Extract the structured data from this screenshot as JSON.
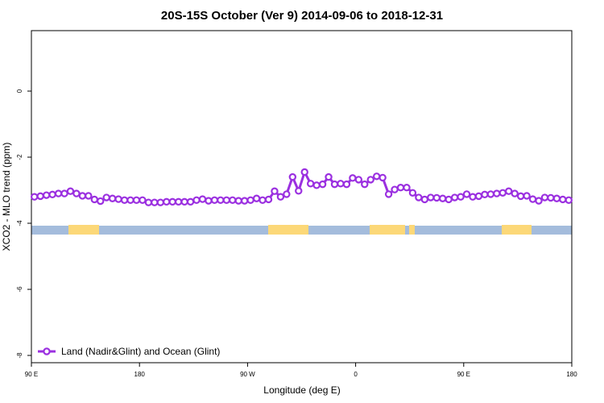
{
  "chart_data": {
    "type": "line",
    "title": "20S-15S October (Ver 9)   2014-09-06 to 2018-12-31",
    "x_label": "Longitude (deg E)",
    "y_label": "XCO2 - MLO trend (ppm)",
    "xlim": [
      90,
      540
    ],
    "xticks": [
      {
        "value": 90,
        "label": "90 E"
      },
      180,
      {
        "value": 270,
        "label": "90 W"
      },
      {
        "value": 360,
        "label": "0"
      },
      {
        "value": 450,
        "label": "90 E"
      },
      {
        "value": 540,
        "label": "180"
      }
    ],
    "ylim": [
      -8.22,
      1.83
    ],
    "yticks": [
      0,
      -2,
      -4,
      -6,
      -8
    ],
    "legend": "bottom-left",
    "x": [
      92.5,
      97.5,
      102.5,
      107.5,
      112.5,
      117.5,
      122.5,
      127.5,
      132.5,
      137.5,
      142.5,
      147.5,
      152.5,
      157.5,
      162.5,
      167.5,
      172.5,
      177.5,
      182.5,
      187.5,
      192.5,
      197.5,
      202.5,
      207.5,
      212.5,
      217.5,
      222.5,
      227.5,
      232.5,
      237.5,
      242.5,
      247.5,
      252.5,
      257.5,
      262.5,
      267.5,
      272.5,
      277.5,
      282.5,
      287.5,
      292.5,
      297.5,
      302.5,
      307.5,
      312.5,
      317.5,
      322.5,
      327.5,
      332.5,
      337.5,
      342.5,
      347.5,
      352.5,
      357.5,
      362.5,
      367.5,
      372.5,
      377.5,
      382.5,
      387.5,
      392.5,
      397.5,
      402.5,
      407.5,
      412.5,
      417.5,
      422.5,
      427.5,
      432.5,
      437.5,
      442.5,
      447.5,
      452.5,
      457.5,
      462.5,
      467.5,
      472.5,
      477.5,
      482.5,
      487.5,
      492.5,
      497.5,
      502.5,
      507.5,
      512.5,
      517.5,
      522.5,
      527.5,
      532.5,
      537.5
    ],
    "series": [
      {
        "name": "Land (Nadir&Glint) and Ocean (Glint)",
        "color": "#9b30e0",
        "values": [
          -3.2,
          -3.18,
          -3.15,
          -3.13,
          -3.1,
          -3.1,
          -3.03,
          -3.1,
          -3.17,
          -3.17,
          -3.28,
          -3.33,
          -3.22,
          -3.25,
          -3.27,
          -3.3,
          -3.3,
          -3.3,
          -3.3,
          -3.37,
          -3.37,
          -3.37,
          -3.35,
          -3.35,
          -3.35,
          -3.35,
          -3.35,
          -3.3,
          -3.27,
          -3.32,
          -3.3,
          -3.3,
          -3.3,
          -3.3,
          -3.32,
          -3.32,
          -3.3,
          -3.25,
          -3.3,
          -3.28,
          -3.03,
          -3.2,
          -3.12,
          -2.6,
          -3.02,
          -2.45,
          -2.8,
          -2.85,
          -2.82,
          -2.6,
          -2.82,
          -2.8,
          -2.82,
          -2.63,
          -2.68,
          -2.82,
          -2.68,
          -2.58,
          -2.62,
          -3.12,
          -2.98,
          -2.92,
          -2.92,
          -3.08,
          -3.22,
          -3.28,
          -3.22,
          -3.23,
          -3.25,
          -3.28,
          -3.22,
          -3.2,
          -3.12,
          -3.2,
          -3.18,
          -3.13,
          -3.12,
          -3.1,
          -3.08,
          -3.03,
          -3.1,
          -3.18,
          -3.17,
          -3.27,
          -3.32,
          -3.22,
          -3.23,
          -3.25,
          -3.28,
          -3.3
        ]
      }
    ]
  }
}
